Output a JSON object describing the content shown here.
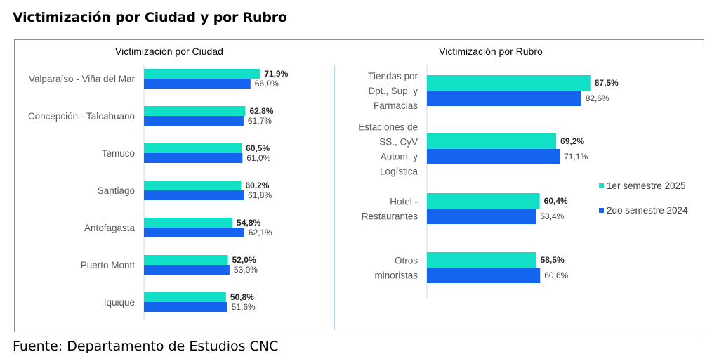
{
  "page": {
    "title": "Victimización por Ciudad y por Rubro",
    "source": "Fuente: Departamento de Estudios CNC"
  },
  "colors": {
    "series_2025": "#12E0C6",
    "series_2024": "#1464F0",
    "divider": "#9DC3E6",
    "frame": "#8C8C8C"
  },
  "legend": {
    "position": "right",
    "items": [
      "1er semestre 2025",
      "2do semestre 2024"
    ]
  },
  "chart_data": [
    {
      "type": "bar",
      "orientation": "horizontal",
      "title": "Victimización por Ciudad",
      "xlabel": "",
      "ylabel": "",
      "xlim": [
        0,
        100
      ],
      "grid": false,
      "categories": [
        [
          "Valparaíso - Viña del Mar"
        ],
        [
          "Concepción - Talcahuano"
        ],
        [
          "Temuco"
        ],
        [
          "Santiago"
        ],
        [
          "Antofagasta"
        ],
        [
          "Puerto Montt"
        ],
        [
          "Iquique"
        ]
      ],
      "series": [
        {
          "name": "1er semestre 2025",
          "values": [
            71.9,
            62.8,
            60.5,
            60.2,
            54.8,
            52.0,
            50.8
          ],
          "labels": [
            "71,9%",
            "62,8%",
            "60,5%",
            "60,2%",
            "54,8%",
            "52,0%",
            "50,8%"
          ]
        },
        {
          "name": "2do semestre 2024",
          "values": [
            66.0,
            61.7,
            61.0,
            61.8,
            62.1,
            53.0,
            51.6
          ],
          "labels": [
            "66,0%",
            "61,7%",
            "61,0%",
            "61,8%",
            "62,1%",
            "53,0%",
            "51,6%"
          ]
        }
      ]
    },
    {
      "type": "bar",
      "orientation": "horizontal",
      "title": "Victimización por Rubro",
      "xlabel": "",
      "ylabel": "",
      "xlim": [
        0,
        100
      ],
      "grid": false,
      "categories": [
        [
          "Tiendas por",
          "Dpt., Sup. y",
          "Farmacias"
        ],
        [
          "Estaciones de",
          "SS., CyV",
          "Autom. y",
          "Logística"
        ],
        [
          "Hotel -",
          "Restaurantes"
        ],
        [
          "Otros",
          "minoristas"
        ]
      ],
      "series": [
        {
          "name": "1er semestre 2025",
          "values": [
            87.5,
            69.2,
            60.4,
            58.5
          ],
          "labels": [
            "87,5%",
            "69,2%",
            "60,4%",
            "58,5%"
          ]
        },
        {
          "name": "2do semestre 2024",
          "values": [
            82.6,
            71.1,
            58.4,
            60.6
          ],
          "labels": [
            "82,6%",
            "71,1%",
            "58,4%",
            "60,6%"
          ]
        }
      ]
    }
  ]
}
